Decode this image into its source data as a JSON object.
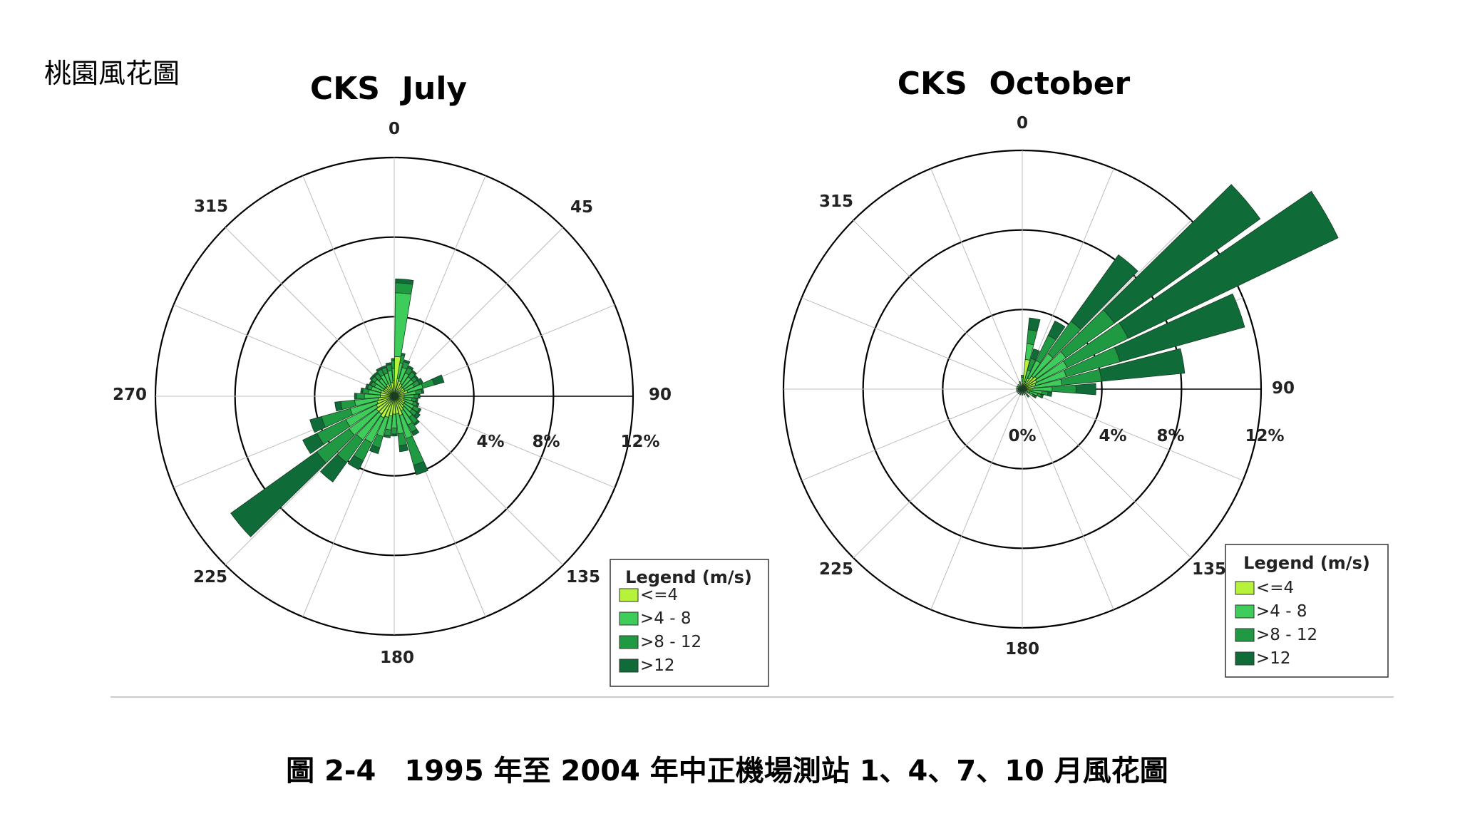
{
  "page_label": "桃園風花圖",
  "caption": "圖 2-4　1995 年至 2004 年中正機場測站 1、4、7、10 月風花圖",
  "speed_bins": [
    "<=4",
    ">4 - 8",
    ">8 - 12",
    ">12"
  ],
  "speed_colors": [
    "#b6f23a",
    "#3ecd5a",
    "#1f9a43",
    "#0f6b38"
  ],
  "chart_data": [
    {
      "type": "wind-rose",
      "title": "CKS  July",
      "legend_title": "Legend (m/s)",
      "direction_labels": [
        "0",
        "45",
        "90",
        "135",
        "180",
        "225",
        "270",
        "315"
      ],
      "ring_labels": [
        "4%",
        "8%",
        "12%"
      ],
      "rings": [
        4,
        8,
        12
      ],
      "max": 12,
      "sector_width_deg": 10,
      "sectors": [
        {
          "dir": 0,
          "values": [
            0.8,
            0.6,
            0.4,
            0.1
          ]
        },
        {
          "dir": 10,
          "values": [
            0.9,
            0.8,
            0.4,
            0.1
          ]
        },
        {
          "dir": 20,
          "values": [
            0.8,
            0.7,
            0.3,
            0.1
          ]
        },
        {
          "dir": 30,
          "values": [
            0.7,
            0.6,
            0.3,
            0.1
          ]
        },
        {
          "dir": 40,
          "values": [
            0.6,
            0.6,
            0.3,
            0.1
          ]
        },
        {
          "dir": 50,
          "values": [
            0.6,
            0.6,
            0.2,
            0.1
          ]
        },
        {
          "dir": 60,
          "values": [
            0.6,
            0.5,
            0.3,
            0.2
          ]
        },
        {
          "dir": 70,
          "values": [
            0.7,
            0.8,
            0.6,
            0.5
          ]
        },
        {
          "dir": 80,
          "values": [
            0.5,
            0.6,
            0.3,
            0.1
          ]
        },
        {
          "dir": 90,
          "values": [
            0.5,
            0.5,
            0.2,
            0.1
          ]
        },
        {
          "dir": 100,
          "values": [
            0.5,
            0.4,
            0.2,
            0.1
          ]
        },
        {
          "dir": 110,
          "values": [
            0.5,
            0.5,
            0.2,
            0.1
          ]
        },
        {
          "dir": 120,
          "values": [
            0.6,
            0.5,
            0.3,
            0.1
          ]
        },
        {
          "dir": 130,
          "values": [
            0.6,
            0.5,
            0.3,
            0.2
          ]
        },
        {
          "dir": 140,
          "values": [
            0.7,
            0.6,
            0.4,
            0.1
          ]
        },
        {
          "dir": 150,
          "values": [
            0.8,
            0.8,
            0.4,
            0.2
          ]
        },
        {
          "dir": 160,
          "values": [
            1.0,
            1.2,
            1.4,
            0.5
          ]
        },
        {
          "dir": 170,
          "values": [
            0.9,
            1.0,
            0.6,
            0.3
          ]
        },
        {
          "dir": 180,
          "values": [
            0.9,
            0.7,
            0.3,
            0.1
          ]
        },
        {
          "dir": 190,
          "values": [
            1.0,
            0.7,
            0.3,
            0.1
          ]
        },
        {
          "dir": 200,
          "values": [
            1.1,
            1.0,
            0.6,
            0.3
          ]
        },
        {
          "dir": 210,
          "values": [
            1.2,
            1.4,
            1.0,
            0.5
          ]
        },
        {
          "dir": 220,
          "values": [
            1.1,
            1.6,
            1.4,
            1.2
          ]
        },
        {
          "dir": 230,
          "values": [
            1.1,
            1.7,
            2.0,
            5.3
          ]
        },
        {
          "dir": 240,
          "values": [
            1.0,
            1.7,
            1.6,
            0.8
          ]
        },
        {
          "dir": 250,
          "values": [
            0.9,
            1.4,
            1.5,
            0.6
          ]
        },
        {
          "dir": 260,
          "values": [
            0.8,
            1.2,
            0.7,
            0.3
          ]
        },
        {
          "dir": 270,
          "values": [
            0.7,
            0.8,
            0.4,
            0.1
          ]
        },
        {
          "dir": 280,
          "values": [
            0.7,
            0.6,
            0.3,
            0.1
          ]
        },
        {
          "dir": 290,
          "values": [
            0.7,
            0.5,
            0.2,
            0.1
          ]
        },
        {
          "dir": 300,
          "values": [
            0.6,
            0.5,
            0.2,
            0.1
          ]
        },
        {
          "dir": 310,
          "values": [
            0.6,
            0.6,
            0.2,
            0.1
          ]
        },
        {
          "dir": 320,
          "values": [
            0.6,
            0.5,
            0.3,
            0.1
          ]
        },
        {
          "dir": 330,
          "values": [
            0.7,
            0.5,
            0.3,
            0.1
          ]
        },
        {
          "dir": 340,
          "values": [
            0.6,
            0.6,
            0.3,
            0.1
          ]
        },
        {
          "dir": 350,
          "values": [
            0.7,
            0.6,
            0.3,
            0.1
          ]
        },
        {
          "dir": 5,
          "values": [
            2.0,
            3.2,
            0.5,
            0.2
          ]
        }
      ]
    },
    {
      "type": "wind-rose",
      "title": "CKS  October",
      "legend_title": "Legend (m/s)",
      "direction_labels": [
        "0",
        "90",
        "135",
        "180",
        "225",
        "315"
      ],
      "ring_labels": [
        "0%",
        "4%",
        "8%",
        "12%"
      ],
      "rings": [
        4,
        8,
        12
      ],
      "max": 12,
      "sector_width_deg": 10,
      "sectors": [
        {
          "dir": 0,
          "values": [
            0.4,
            0.2,
            0.1,
            0.0
          ]
        },
        {
          "dir": 10,
          "values": [
            1.5,
            0.8,
            0.7,
            0.6
          ]
        },
        {
          "dir": 20,
          "values": [
            0.4,
            0.6,
            0.6,
            0.5
          ]
        },
        {
          "dir": 30,
          "values": [
            0.6,
            1.0,
            1.4,
            0.8
          ]
        },
        {
          "dir": 40,
          "values": [
            0.8,
            1.4,
            2.0,
            4.1
          ]
        },
        {
          "dir": 50,
          "values": [
            0.9,
            1.8,
            3.0,
            9.0
          ]
        },
        {
          "dir": 60,
          "values": [
            0.8,
            1.7,
            3.4,
            11.7
          ]
        },
        {
          "dir": 70,
          "values": [
            0.7,
            1.6,
            2.8,
            6.5
          ]
        },
        {
          "dir": 80,
          "values": [
            0.6,
            1.4,
            2.0,
            4.2
          ]
        },
        {
          "dir": 90,
          "values": [
            0.5,
            1.0,
            1.2,
            1.0
          ]
        },
        {
          "dir": 100,
          "values": [
            0.4,
            0.6,
            0.3,
            0.2
          ]
        },
        {
          "dir": 110,
          "values": [
            0.4,
            0.4,
            0.2,
            0.1
          ]
        },
        {
          "dir": 120,
          "values": [
            0.3,
            0.3,
            0.1,
            0.1
          ]
        },
        {
          "dir": 140,
          "values": [
            0.2,
            0.2,
            0.1,
            0.0
          ]
        },
        {
          "dir": 160,
          "values": [
            0.2,
            0.1,
            0.0,
            0.0
          ]
        },
        {
          "dir": 180,
          "values": [
            0.2,
            0.1,
            0.0,
            0.0
          ]
        },
        {
          "dir": 200,
          "values": [
            0.2,
            0.1,
            0.0,
            0.0
          ]
        },
        {
          "dir": 220,
          "values": [
            0.2,
            0.1,
            0.0,
            0.0
          ]
        },
        {
          "dir": 240,
          "values": [
            0.2,
            0.1,
            0.0,
            0.0
          ]
        },
        {
          "dir": 260,
          "values": [
            0.2,
            0.1,
            0.0,
            0.0
          ]
        },
        {
          "dir": 280,
          "values": [
            0.2,
            0.1,
            0.0,
            0.0
          ]
        },
        {
          "dir": 300,
          "values": [
            0.2,
            0.1,
            0.0,
            0.0
          ]
        },
        {
          "dir": 320,
          "values": [
            0.2,
            0.1,
            0.0,
            0.0
          ]
        },
        {
          "dir": 340,
          "values": [
            0.3,
            0.1,
            0.0,
            0.0
          ]
        }
      ]
    }
  ]
}
